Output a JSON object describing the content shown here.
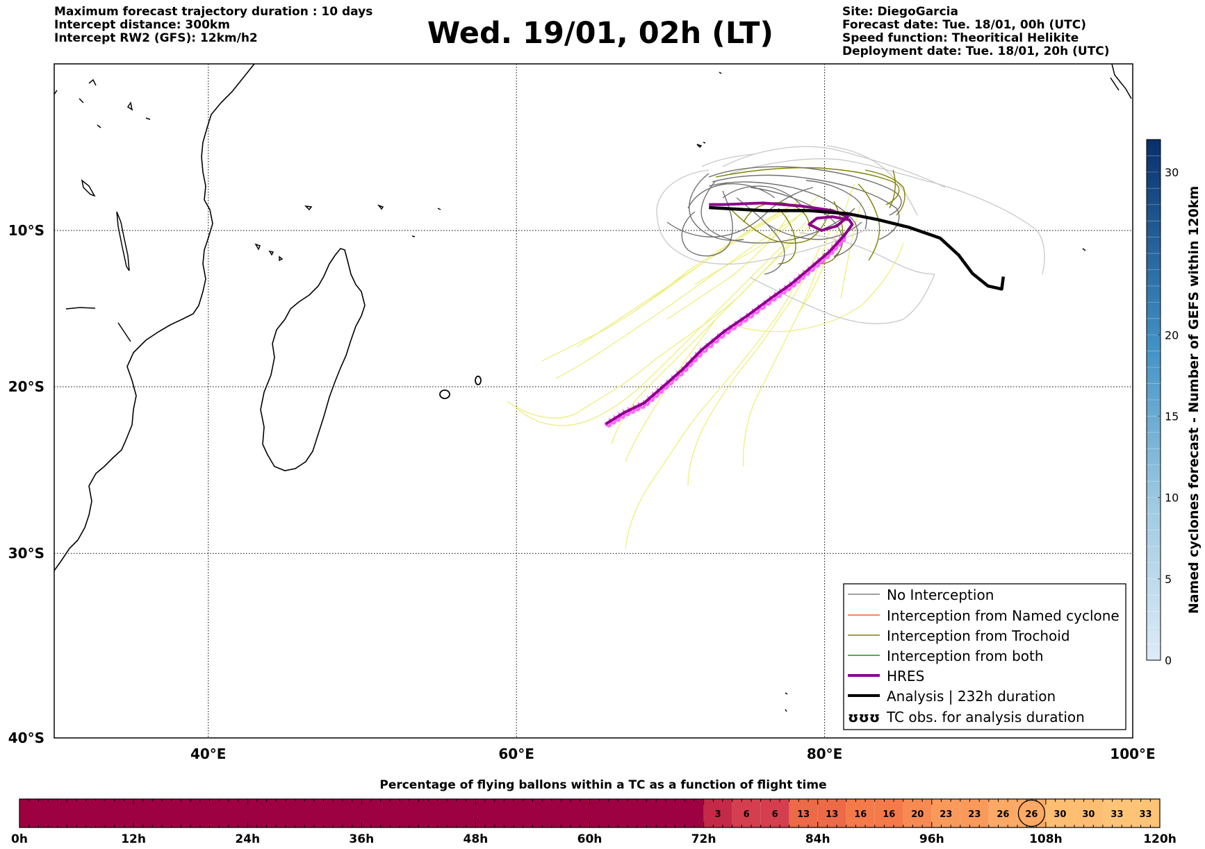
{
  "header": {
    "left": [
      "Maximum forecast trajectory duration : 10 days",
      "Intercept distance: 300km",
      "Intercept RW2 (GFS):  12km/h2"
    ],
    "title": "Wed. 19/01, 02h (LT)",
    "right": [
      "Site: DiegoGarcia",
      "Forecast date: Tue. 18/01, 00h (UTC)",
      "Speed function: Theoritical Helikite",
      "Deployment date: Tue. 18/01, 20h (UTC)"
    ]
  },
  "map": {
    "lon_range": [
      30,
      100
    ],
    "lat_range": [
      -40,
      1
    ],
    "lon_ticks": [
      {
        "value": 40,
        "label": "40°E"
      },
      {
        "value": 60,
        "label": "60°E"
      },
      {
        "value": 80,
        "label": "80°E"
      },
      {
        "value": 100,
        "label": "100°E"
      }
    ],
    "lat_ticks": [
      {
        "value": -10,
        "label": "10°S"
      },
      {
        "value": -20,
        "label": "20°S"
      },
      {
        "value": -30,
        "label": "30°S"
      },
      {
        "value": -40,
        "label": "40°S"
      }
    ],
    "grid": "dotted",
    "colors": {
      "no_interception": "#808080",
      "no_interception_light": "#c8c8c8",
      "named_cyclone": "#ff5a1e",
      "trochoid": "#808000",
      "both": "#228b22",
      "hres": "#8b008b",
      "analysis": "#000000",
      "ensemble_yellow": "#eeee77",
      "hres_pink": "#ff66ff"
    }
  },
  "legend": {
    "position": "lower-right",
    "items": [
      {
        "label": "No Interception",
        "icon": "thin-gray-line"
      },
      {
        "label": "Interception from Named cyclone",
        "icon": "thin-orange-line"
      },
      {
        "label": "Interception from Trochoid",
        "icon": "thin-olive-line"
      },
      {
        "label": "Interception from both",
        "icon": "thin-green-line"
      },
      {
        "label": "HRES",
        "icon": "thick-purple-line"
      },
      {
        "label": "Analysis | 232h duration",
        "icon": "thick-black-line"
      },
      {
        "label": "TC obs. for analysis duration",
        "icon": "trochoid-loops-icon",
        "symbol": "ʊʊʊ"
      }
    ]
  },
  "colorbar_right": {
    "label": "Named cyclones forecast - Number of GEFS within 120km",
    "range": [
      0,
      32
    ],
    "ticks": [
      0,
      5,
      10,
      15,
      20,
      30
    ],
    "color_low": "#deebf7",
    "color_high": "#08306b"
  },
  "timeline": {
    "title": "Percentage of flying ballons within a TC as a function of flight time",
    "tick_labels": [
      "0h",
      "12h",
      "24h",
      "36h",
      "48h",
      "60h",
      "72h",
      "84h",
      "96h",
      "108h",
      "120h"
    ],
    "hours_range": [
      0,
      120
    ],
    "base_color": "#9e0142",
    "start_hour": 72,
    "step_hours": 3,
    "values": [
      3,
      6,
      6,
      13,
      13,
      16,
      16,
      20,
      23,
      23,
      26,
      26,
      30,
      30,
      33,
      33
    ],
    "circled_index": 11
  },
  "chart_data": {
    "type": "scatter",
    "hres_track": [
      [
        65.8,
        -22.3
      ],
      [
        67.0,
        -21.6
      ],
      [
        68.3,
        -21.0
      ],
      [
        69.5,
        -20.0
      ],
      [
        70.8,
        -18.9
      ],
      [
        72.0,
        -17.7
      ],
      [
        73.5,
        -16.5
      ],
      [
        75.0,
        -15.5
      ],
      [
        76.5,
        -14.4
      ],
      [
        77.8,
        -13.5
      ],
      [
        79.0,
        -12.5
      ],
      [
        80.3,
        -11.4
      ],
      [
        81.3,
        -10.3
      ],
      [
        81.8,
        -9.6
      ],
      [
        81.6,
        -9.3
      ],
      [
        80.5,
        -9.1
      ],
      [
        79.5,
        -9.2
      ],
      [
        79.0,
        -9.6
      ],
      [
        79.8,
        -10.0
      ],
      [
        80.8,
        -9.7
      ],
      [
        81.5,
        -9.1
      ],
      [
        80.5,
        -8.7
      ],
      [
        78.5,
        -8.4
      ],
      [
        76.0,
        -8.2
      ],
      [
        73.5,
        -8.3
      ],
      [
        72.5,
        -8.3
      ]
    ],
    "analysis_track": [
      [
        72.5,
        -8.5
      ],
      [
        76.0,
        -8.7
      ],
      [
        79.0,
        -8.7
      ],
      [
        81.5,
        -8.9
      ],
      [
        83.5,
        -9.3
      ],
      [
        85.5,
        -9.8
      ],
      [
        87.5,
        -10.5
      ],
      [
        88.7,
        -11.6
      ],
      [
        89.6,
        -12.8
      ],
      [
        90.6,
        -13.6
      ],
      [
        91.5,
        -13.8
      ],
      [
        91.6,
        -13.0
      ]
    ]
  }
}
